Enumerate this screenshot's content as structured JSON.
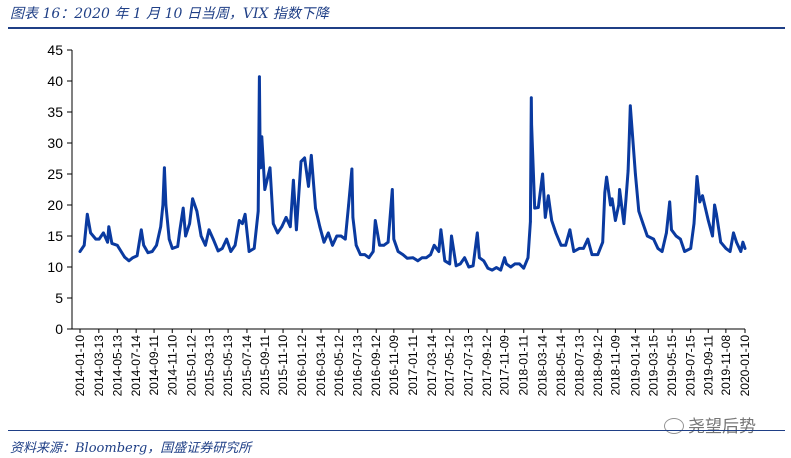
{
  "figure": {
    "title": "图表 16：2020 年 1 月 10 日当周，VIX 指数下降",
    "source": "资料来源：Bloomberg，国盛证券研究所",
    "watermark": "尧望后势"
  },
  "colors": {
    "line": "#0a3aa0",
    "accent": "#1f3f86",
    "axis": "#000000"
  },
  "chart_data": {
    "type": "line",
    "title": "图表 16：2020 年 1 月 10 日当周，VIX 指数下降",
    "xlabel": "",
    "ylabel": "",
    "ylim": [
      0,
      45
    ],
    "yticks": [
      0,
      5,
      10,
      15,
      20,
      25,
      30,
      35,
      40,
      45
    ],
    "grid": false,
    "legend": "none",
    "xticks": [
      "2014-01-10",
      "2014-03-13",
      "2014-05-13",
      "2014-07-14",
      "2014-09-11",
      "2014-11-10",
      "2015-01-12",
      "2015-03-13",
      "2015-05-13",
      "2015-07-14",
      "2015-09-11",
      "2015-11-10",
      "2016-01-12",
      "2016-03-14",
      "2016-05-12",
      "2016-07-13",
      "2016-09-12",
      "2016-11-09",
      "2017-01-11",
      "2017-03-14",
      "2017-05-12",
      "2017-07-13",
      "2017-09-12",
      "2017-11-09",
      "2018-01-11",
      "2018-03-14",
      "2018-05-14",
      "2018-07-13",
      "2018-09-12",
      "2018-11-09",
      "2019-01-14",
      "2019-03-15",
      "2019-05-15",
      "2019-07-15",
      "2019-09-11",
      "2019-11-08",
      "2020-01-10"
    ],
    "series": [
      {
        "x": [
          "2014-01-10",
          "2014-01-24",
          "2014-02-03",
          "2014-02-14",
          "2014-03-03",
          "2014-03-14",
          "2014-03-28",
          "2014-04-11",
          "2014-04-15",
          "2014-04-25",
          "2014-05-13",
          "2014-06-06",
          "2014-06-20",
          "2014-07-03",
          "2014-07-17",
          "2014-07-31",
          "2014-08-08",
          "2014-08-22",
          "2014-09-05",
          "2014-09-19",
          "2014-10-03",
          "2014-10-10",
          "2014-10-15",
          "2014-10-20",
          "2014-10-31",
          "2014-11-10",
          "2014-11-28",
          "2014-12-05",
          "2014-12-16",
          "2014-12-24",
          "2015-01-06",
          "2015-01-16",
          "2015-01-30",
          "2015-02-13",
          "2015-02-27",
          "2015-03-11",
          "2015-03-25",
          "2015-04-10",
          "2015-04-24",
          "2015-05-08",
          "2015-05-22",
          "2015-06-05",
          "2015-06-19",
          "2015-06-29",
          "2015-07-08",
          "2015-07-21",
          "2015-08-07",
          "2015-08-20",
          "2015-08-24",
          "2015-08-26",
          "2015-08-28",
          "2015-09-01",
          "2015-09-11",
          "2015-09-28",
          "2015-10-09",
          "2015-10-23",
          "2015-11-06",
          "2015-11-20",
          "2015-12-04",
          "2015-12-14",
          "2015-12-24",
          "2016-01-08",
          "2016-01-20",
          "2016-02-02",
          "2016-02-11",
          "2016-02-25",
          "2016-03-10",
          "2016-03-24",
          "2016-04-07",
          "2016-04-21",
          "2016-05-05",
          "2016-05-19",
          "2016-06-02",
          "2016-06-13",
          "2016-06-24",
          "2016-06-27",
          "2016-07-08",
          "2016-07-22",
          "2016-08-05",
          "2016-08-19",
          "2016-09-02",
          "2016-09-09",
          "2016-09-23",
          "2016-10-07",
          "2016-10-21",
          "2016-11-04",
          "2016-11-09",
          "2016-11-23",
          "2016-12-09",
          "2016-12-23",
          "2017-01-11",
          "2017-01-27",
          "2017-02-10",
          "2017-02-24",
          "2017-03-10",
          "2017-03-22",
          "2017-04-06",
          "2017-04-13",
          "2017-04-26",
          "2017-05-12",
          "2017-05-18",
          "2017-06-02",
          "2017-06-16",
          "2017-06-30",
          "2017-07-14",
          "2017-07-28",
          "2017-08-11",
          "2017-08-18",
          "2017-09-01",
          "2017-09-15",
          "2017-09-29",
          "2017-10-13",
          "2017-10-27",
          "2017-11-09",
          "2017-11-15",
          "2017-11-29",
          "2017-12-13",
          "2017-12-28",
          "2018-01-11",
          "2018-01-25",
          "2018-02-02",
          "2018-02-05",
          "2018-02-06",
          "2018-02-09",
          "2018-02-16",
          "2018-02-28",
          "2018-03-14",
          "2018-03-23",
          "2018-04-02",
          "2018-04-13",
          "2018-04-27",
          "2018-05-14",
          "2018-05-29",
          "2018-06-12",
          "2018-06-25",
          "2018-07-13",
          "2018-07-27",
          "2018-08-10",
          "2018-08-24",
          "2018-09-12",
          "2018-09-28",
          "2018-10-05",
          "2018-10-11",
          "2018-10-24",
          "2018-10-29",
          "2018-11-09",
          "2018-11-20",
          "2018-11-23",
          "2018-12-07",
          "2018-12-14",
          "2018-12-21",
          "2018-12-24",
          "2018-12-28",
          "2019-01-14",
          "2019-01-25",
          "2019-02-08",
          "2019-02-22",
          "2019-03-15",
          "2019-03-29",
          "2019-04-12",
          "2019-04-26",
          "2019-05-07",
          "2019-05-13",
          "2019-05-28",
          "2019-06-11",
          "2019-06-25",
          "2019-07-15",
          "2019-07-26",
          "2019-08-05",
          "2019-08-14",
          "2019-08-23",
          "2019-09-11",
          "2019-09-25",
          "2019-10-02",
          "2019-10-08",
          "2019-10-22",
          "2019-11-08",
          "2019-11-22",
          "2019-12-03",
          "2019-12-13",
          "2019-12-27",
          "2020-01-03",
          "2020-01-10"
        ],
        "values": [
          12.5,
          13.5,
          18.5,
          15.5,
          14.5,
          14.5,
          15.5,
          14.0,
          16.5,
          13.8,
          13.5,
          11.6,
          11.0,
          11.5,
          11.8,
          16.0,
          13.5,
          12.3,
          12.5,
          13.5,
          16.5,
          20.0,
          26.0,
          20.0,
          14.5,
          13.0,
          13.3,
          16.0,
          19.5,
          15.0,
          17.0,
          21.0,
          19.0,
          15.0,
          13.5,
          16.0,
          14.5,
          12.6,
          13.0,
          14.5,
          12.5,
          13.5,
          17.5,
          17.0,
          18.5,
          12.5,
          13.0,
          19.0,
          40.7,
          30.3,
          26.0,
          31.0,
          22.5,
          26.0,
          17.0,
          15.5,
          16.5,
          18.0,
          16.5,
          24.0,
          16.0,
          27.0,
          27.6,
          23.0,
          28.0,
          19.5,
          16.5,
          14.0,
          15.5,
          13.5,
          15.0,
          15.0,
          14.5,
          20.0,
          25.8,
          18.0,
          13.5,
          12.0,
          12.0,
          11.5,
          12.5,
          17.5,
          13.5,
          13.5,
          14.0,
          22.5,
          14.5,
          12.5,
          12.0,
          11.4,
          11.5,
          11.0,
          11.5,
          11.5,
          12.0,
          13.5,
          12.5,
          16.0,
          11.0,
          10.5,
          15.0,
          10.2,
          10.5,
          11.5,
          10.0,
          10.2,
          15.5,
          11.5,
          11.0,
          9.8,
          9.5,
          9.9,
          9.5,
          11.5,
          10.5,
          10.0,
          10.5,
          10.5,
          9.8,
          11.5,
          17.3,
          37.3,
          33.0,
          29.0,
          19.5,
          19.6,
          25.0,
          18.0,
          21.5,
          17.5,
          15.5,
          13.5,
          13.5,
          16.0,
          12.5,
          13.0,
          13.0,
          14.5,
          12.0,
          12.0,
          14.0,
          22.0,
          24.5,
          20.0,
          21.0,
          17.5,
          20.0,
          22.5,
          17.0,
          21.0,
          25.5,
          30.0,
          36.0,
          25.0,
          19.0,
          17.0,
          15.0,
          14.5,
          13.0,
          12.5,
          15.5,
          20.5,
          16.0,
          15.0,
          14.5,
          12.5,
          13.0,
          17.0,
          24.6,
          20.5,
          21.5,
          17.5,
          15.0,
          20.0,
          18.5,
          14.0,
          13.0,
          12.5,
          15.5,
          14.0,
          12.5,
          14.0,
          13.0
        ]
      }
    ]
  }
}
